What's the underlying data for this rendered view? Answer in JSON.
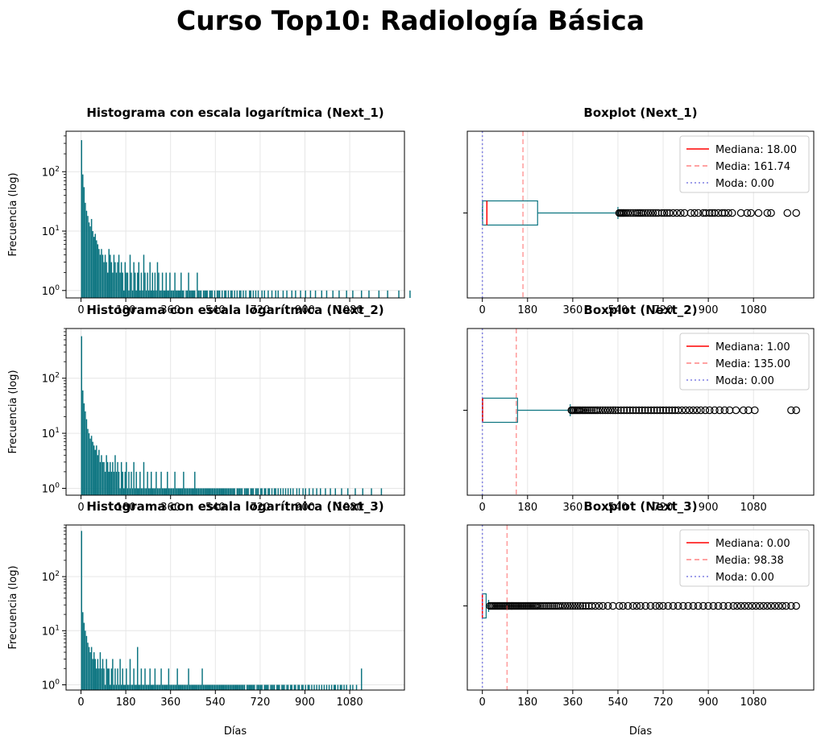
{
  "figure": {
    "title": "Curso Top10: Radiología Básica",
    "colors": {
      "bar": "#0b7480",
      "box": "#0b7480",
      "median": "#ff0000",
      "mean": "#ff5c5c",
      "mode": "#7070e0",
      "grid": "#e6e6e6"
    }
  },
  "chart_data": [
    {
      "type": "bar",
      "title": "Histograma con escala logarítmica (Next_1)",
      "xlabel": "",
      "ylabel": "Frecuencia (log)",
      "yscale": "log",
      "xlim": [
        -60,
        1300
      ],
      "ylim": [
        0.75,
        480
      ],
      "xticks": [
        0,
        180,
        360,
        540,
        720,
        900,
        1080
      ],
      "yticks": [
        {
          "value": 1,
          "label": "10⁰"
        },
        {
          "value": 10,
          "label": "10¹"
        },
        {
          "value": 100,
          "label": "10²"
        }
      ],
      "grid": true,
      "bins": {
        "start": 0,
        "width": 5,
        "counts": [
          340,
          90,
          55,
          30,
          22,
          18,
          14,
          12,
          16,
          10,
          8,
          9,
          7,
          6,
          5,
          4,
          5,
          4,
          3,
          4,
          3,
          2,
          5,
          4,
          3,
          2,
          4,
          3,
          2,
          3,
          4,
          2,
          3,
          2,
          1,
          3,
          2,
          2,
          1,
          4,
          2,
          1,
          3,
          2,
          1,
          2,
          3,
          1,
          2,
          1,
          4,
          2,
          1,
          2,
          1,
          3,
          1,
          2,
          1,
          2,
          1,
          3,
          2,
          1,
          1,
          2,
          1,
          1,
          2,
          1,
          1,
          2,
          1,
          1,
          1,
          2,
          1,
          1,
          1,
          1,
          2,
          1,
          1,
          0,
          1,
          1,
          2,
          1,
          1,
          1,
          1,
          1,
          0,
          2,
          1,
          1,
          1,
          0,
          1,
          1,
          1,
          1,
          0,
          1,
          1,
          1,
          0,
          1,
          0,
          1,
          1,
          1,
          0,
          1,
          0,
          1,
          1,
          0,
          1,
          0,
          1,
          1,
          0,
          1,
          0,
          1,
          0,
          1,
          1,
          0,
          1,
          0,
          1,
          0,
          0,
          1,
          1,
          0,
          1,
          0,
          1,
          0,
          1,
          0,
          0,
          1,
          0,
          1,
          0,
          0,
          1,
          0,
          0,
          1,
          0,
          0,
          1,
          0,
          1,
          0,
          0,
          0,
          1,
          0,
          0,
          1,
          0,
          0,
          0,
          1,
          0,
          0,
          1,
          0,
          0,
          0,
          1,
          0,
          0,
          0,
          1,
          0,
          0,
          0,
          1,
          0,
          0,
          0,
          1,
          0,
          0,
          0,
          0,
          1,
          0,
          0,
          0,
          1,
          0,
          0,
          0,
          0,
          1,
          0,
          0,
          0,
          0,
          1,
          0,
          0,
          0,
          0,
          0,
          1,
          0,
          0,
          0,
          0,
          1,
          0,
          0,
          0,
          0,
          0,
          0,
          1,
          0,
          0,
          0,
          0,
          0,
          1,
          0,
          0,
          0,
          0,
          0,
          0,
          0,
          1,
          0,
          0,
          0,
          0,
          0,
          0,
          1,
          0,
          0,
          0,
          0,
          0,
          0,
          0,
          0,
          1,
          0,
          0,
          0,
          0,
          0,
          0,
          0,
          0,
          1
        ]
      }
    },
    {
      "type": "boxplot",
      "title": "Boxplot (Next_1)",
      "xlabel": "",
      "xlim": [
        -60,
        1320
      ],
      "xticks": [
        0,
        180,
        360,
        540,
        720,
        900,
        1080
      ],
      "grid": true,
      "box": {
        "whisker_low": 0,
        "q1": 1,
        "median": 18,
        "q3": 220,
        "whisker_high": 540
      },
      "mean": 161.74,
      "mode": 0,
      "outliers": [
        545,
        550,
        555,
        560,
        565,
        572,
        580,
        590,
        600,
        610,
        618,
        625,
        632,
        640,
        650,
        660,
        670,
        680,
        690,
        700,
        715,
        725,
        735,
        745,
        760,
        775,
        790,
        805,
        830,
        845,
        860,
        880,
        890,
        905,
        915,
        925,
        940,
        955,
        965,
        980,
        995,
        1030,
        1055,
        1070,
        1100,
        1135,
        1150,
        1215,
        1250
      ],
      "legend": {
        "position": "upper-right",
        "entries": [
          "Mediana: 18.00",
          "Media: 161.74",
          "Moda: 0.00"
        ]
      }
    },
    {
      "type": "bar",
      "title": "Histograma con escala logarítmica (Next_2)",
      "xlabel": "",
      "ylabel": "Frecuencia (log)",
      "yscale": "log",
      "xlim": [
        -60,
        1300
      ],
      "ylim": [
        0.75,
        800
      ],
      "xticks": [
        0,
        180,
        360,
        540,
        720,
        900,
        1080
      ],
      "yticks": [
        {
          "value": 1,
          "label": "10⁰"
        },
        {
          "value": 10,
          "label": "10¹"
        },
        {
          "value": 100,
          "label": "10²"
        }
      ],
      "grid": true,
      "bins": {
        "start": 0,
        "width": 5,
        "counts": [
          580,
          60,
          35,
          25,
          18,
          12,
          10,
          8,
          9,
          7,
          6,
          5,
          6,
          4,
          5,
          3,
          4,
          3,
          3,
          2,
          4,
          3,
          2,
          3,
          2,
          3,
          2,
          4,
          2,
          3,
          2,
          1,
          3,
          2,
          1,
          2,
          3,
          1,
          2,
          1,
          2,
          1,
          3,
          1,
          2,
          1,
          1,
          2,
          1,
          1,
          3,
          1,
          1,
          2,
          1,
          1,
          2,
          1,
          1,
          1,
          2,
          1,
          1,
          1,
          2,
          1,
          1,
          1,
          1,
          2,
          1,
          1,
          1,
          1,
          1,
          2,
          1,
          1,
          1,
          1,
          1,
          1,
          2,
          1,
          1,
          1,
          1,
          1,
          1,
          1,
          1,
          2,
          1,
          1,
          1,
          1,
          1,
          1,
          1,
          1,
          1,
          1,
          1,
          1,
          1,
          1,
          1,
          1,
          1,
          1,
          1,
          1,
          1,
          1,
          1,
          1,
          1,
          1,
          1,
          1,
          1,
          1,
          1,
          1,
          0,
          1,
          1,
          1,
          1,
          1,
          0,
          1,
          1,
          1,
          1,
          0,
          1,
          1,
          1,
          0,
          1,
          1,
          1,
          0,
          1,
          1,
          0,
          1,
          1,
          0,
          1,
          1,
          0,
          1,
          0,
          1,
          1,
          0,
          1,
          0,
          1,
          0,
          1,
          0,
          1,
          0,
          1,
          0,
          1,
          0,
          1,
          0,
          0,
          1,
          0,
          1,
          0,
          0,
          1,
          0,
          1,
          0,
          0,
          1,
          0,
          0,
          1,
          0,
          0,
          1,
          0,
          0,
          1,
          0,
          0,
          0,
          1,
          0,
          0,
          0,
          1,
          0,
          0,
          0,
          1,
          0,
          0,
          0,
          0,
          1,
          0,
          0,
          0,
          0,
          1,
          0,
          0,
          0,
          0,
          0,
          1,
          0,
          0,
          0,
          0,
          0,
          1,
          0,
          0,
          0,
          0,
          0,
          0,
          1,
          0,
          0,
          0,
          0,
          0,
          0,
          0,
          1
        ]
      }
    },
    {
      "type": "boxplot",
      "title": "Boxplot (Next_2)",
      "xlabel": "",
      "xlim": [
        -60,
        1320
      ],
      "xticks": [
        0,
        180,
        360,
        540,
        720,
        900,
        1080
      ],
      "grid": true,
      "box": {
        "whisker_low": 0,
        "q1": 0,
        "median": 1,
        "q3": 140,
        "whisker_high": 350
      },
      "mean": 135.0,
      "mode": 0,
      "outliers": [
        355,
        360,
        366,
        372,
        378,
        384,
        390,
        398,
        405,
        412,
        420,
        428,
        436,
        444,
        452,
        460,
        470,
        480,
        490,
        500,
        510,
        520,
        530,
        540,
        552,
        564,
        576,
        588,
        600,
        612,
        624,
        636,
        648,
        660,
        672,
        684,
        696,
        708,
        720,
        732,
        744,
        756,
        768,
        780,
        795,
        810,
        825,
        840,
        855,
        870,
        888,
        905,
        925,
        945,
        965,
        985,
        1010,
        1040,
        1060,
        1085,
        1230,
        1250
      ],
      "legend": {
        "position": "upper-right",
        "entries": [
          "Mediana: 1.00",
          "Media: 135.00",
          "Moda: 0.00"
        ]
      }
    },
    {
      "type": "bar",
      "title": "Histograma con escala logarítmica (Next_3)",
      "xlabel": "Días",
      "ylabel": "Frecuencia (log)",
      "yscale": "log",
      "xlim": [
        -60,
        1300
      ],
      "ylim": [
        0.8,
        900
      ],
      "xticks": [
        0,
        180,
        360,
        540,
        720,
        900,
        1080
      ],
      "yticks": [
        {
          "value": 1,
          "label": "10⁰"
        },
        {
          "value": 10,
          "label": "10¹"
        },
        {
          "value": 100,
          "label": "10²"
        }
      ],
      "grid": true,
      "bins": {
        "start": 0,
        "width": 5,
        "counts": [
          700,
          22,
          14,
          10,
          8,
          6,
          5,
          4,
          5,
          3,
          4,
          3,
          2,
          3,
          2,
          4,
          2,
          3,
          2,
          1,
          3,
          2,
          2,
          1,
          2,
          3,
          1,
          2,
          1,
          2,
          1,
          3,
          1,
          2,
          1,
          1,
          2,
          1,
          1,
          3,
          1,
          1,
          2,
          1,
          1,
          5,
          1,
          1,
          2,
          1,
          1,
          2,
          1,
          1,
          1,
          2,
          1,
          1,
          1,
          2,
          1,
          1,
          1,
          1,
          2,
          1,
          1,
          1,
          1,
          1,
          2,
          1,
          1,
          1,
          1,
          1,
          1,
          2,
          1,
          1,
          1,
          1,
          1,
          1,
          1,
          1,
          2,
          1,
          1,
          1,
          1,
          1,
          1,
          1,
          1,
          1,
          1,
          2,
          1,
          1,
          1,
          1,
          1,
          1,
          1,
          1,
          1,
          1,
          1,
          1,
          1,
          1,
          1,
          1,
          1,
          1,
          1,
          1,
          1,
          1,
          1,
          1,
          1,
          1,
          1,
          1,
          1,
          1,
          1,
          1,
          1,
          1,
          0,
          1,
          1,
          1,
          1,
          1,
          1,
          1,
          0,
          1,
          1,
          1,
          1,
          1,
          0,
          1,
          1,
          1,
          1,
          0,
          1,
          1,
          1,
          1,
          0,
          1,
          1,
          1,
          0,
          1,
          1,
          1,
          0,
          1,
          1,
          0,
          1,
          1,
          0,
          1,
          1,
          0,
          1,
          1,
          0,
          1,
          1,
          0,
          1,
          0,
          1,
          1,
          0,
          1,
          0,
          1,
          0,
          1,
          0,
          1,
          0,
          1,
          0,
          1,
          0,
          1,
          0,
          1,
          0,
          1,
          0,
          1,
          1,
          0,
          1,
          0,
          1,
          1,
          0,
          1,
          0,
          1,
          0,
          0,
          1,
          0,
          1,
          0,
          0,
          1,
          0,
          0,
          0,
          2
        ]
      }
    },
    {
      "type": "boxplot",
      "title": "Boxplot (Next_3)",
      "xlabel": "Días",
      "xlim": [
        -60,
        1320
      ],
      "xticks": [
        0,
        180,
        360,
        540,
        720,
        900,
        1080
      ],
      "grid": true,
      "box": {
        "whisker_low": 0,
        "q1": 0,
        "median": 0,
        "q3": 15,
        "whisker_high": 25
      },
      "mean": 98.38,
      "mode": 0,
      "outliers": [
        30,
        36,
        42,
        48,
        54,
        60,
        66,
        72,
        78,
        84,
        90,
        96,
        102,
        108,
        114,
        120,
        126,
        132,
        138,
        144,
        150,
        156,
        162,
        168,
        174,
        180,
        186,
        192,
        198,
        204,
        210,
        216,
        222,
        230,
        238,
        246,
        254,
        262,
        270,
        278,
        286,
        294,
        302,
        310,
        320,
        330,
        340,
        350,
        360,
        370,
        380,
        390,
        400,
        412,
        424,
        436,
        450,
        465,
        480,
        500,
        520,
        545,
        560,
        580,
        600,
        615,
        630,
        650,
        670,
        690,
        705,
        720,
        740,
        760,
        780,
        800,
        820,
        840,
        860,
        880,
        900,
        920,
        940,
        960,
        980,
        1000,
        1015,
        1030,
        1045,
        1060,
        1075,
        1090,
        1105,
        1120,
        1135,
        1150,
        1165,
        1180,
        1195,
        1210,
        1230,
        1250
      ],
      "legend": {
        "position": "upper-right",
        "entries": [
          "Mediana: 0.00",
          "Media: 98.38",
          "Moda: 0.00"
        ]
      }
    }
  ]
}
